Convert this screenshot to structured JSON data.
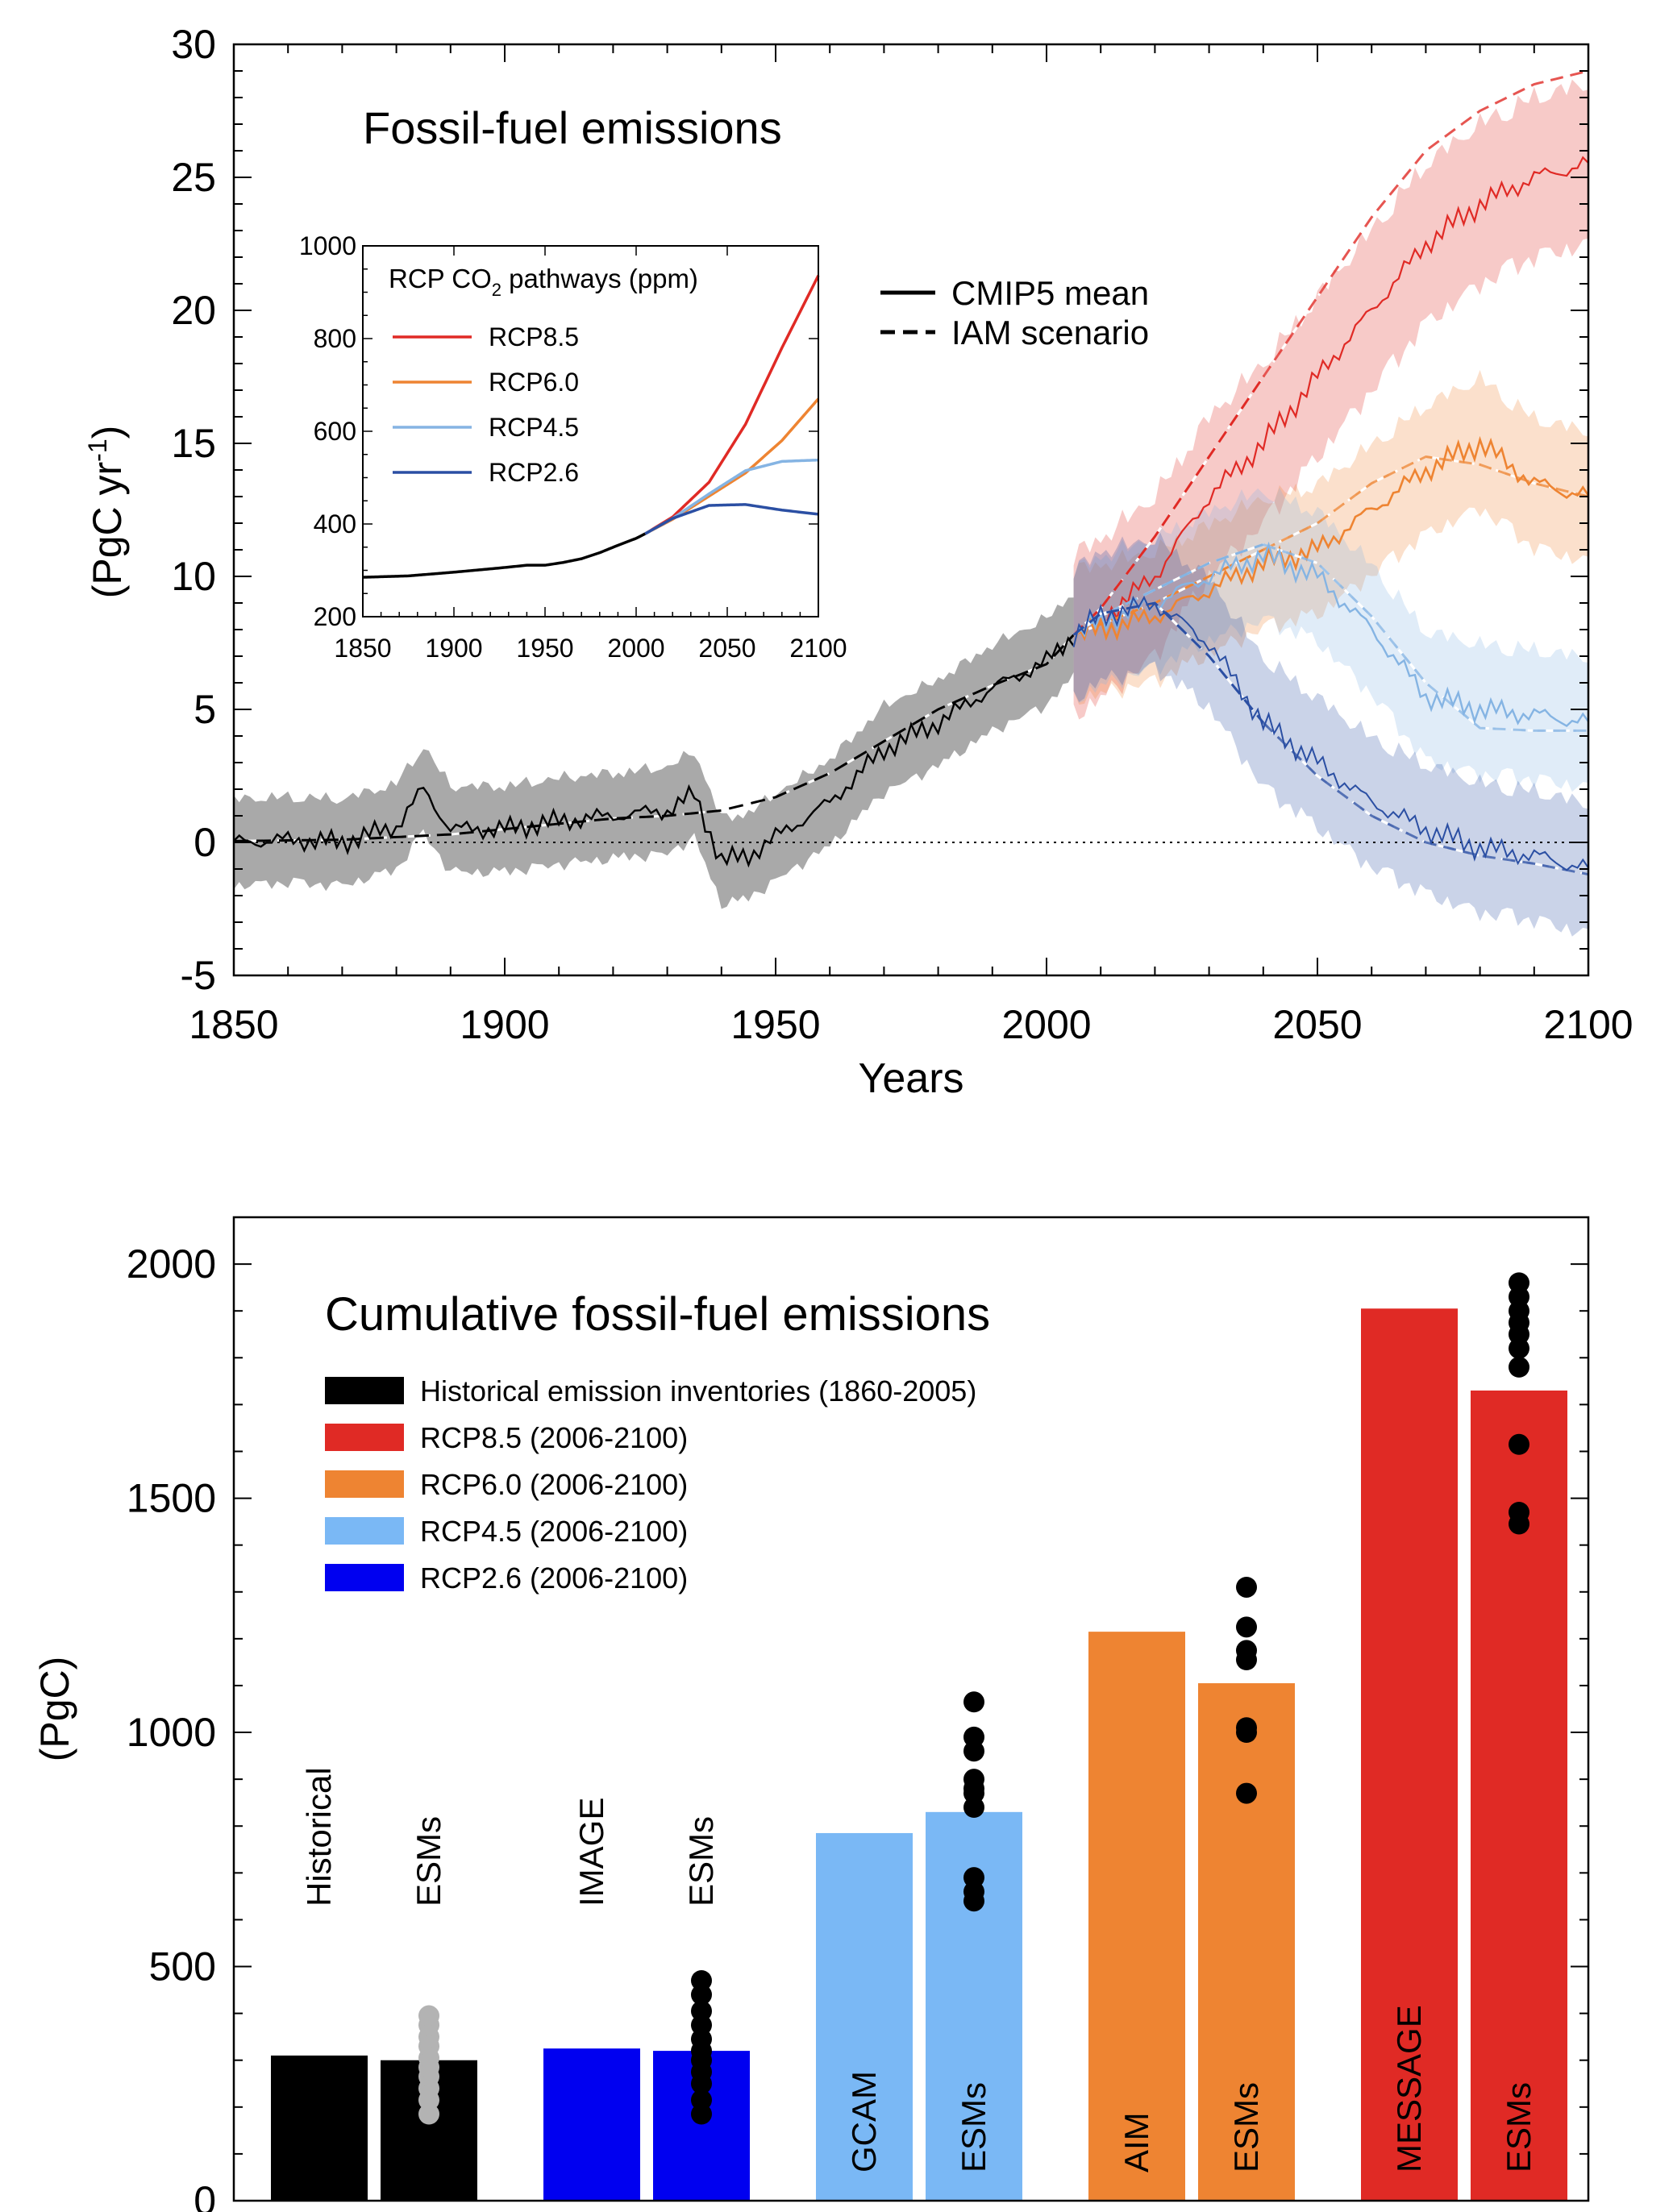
{
  "chart_data": [
    {
      "type": "line",
      "title": "Fossil-fuel emissions",
      "xlabel": "Years",
      "ylabel": "(PgC yr",
      "ylabel_sup": "-1",
      "ylabel_close": ")",
      "xlim": [
        1850,
        2100
      ],
      "ylim": [
        -5,
        30
      ],
      "xticks": [
        "1850",
        "1900",
        "1950",
        "2000",
        "2050",
        "2100"
      ],
      "yticks": [
        "-5",
        "0",
        "5",
        "10",
        "15",
        "20",
        "25",
        "30"
      ],
      "legend": [
        "CMIP5 mean",
        "IAM scenario"
      ],
      "colors": {
        "historical": "#000000",
        "hist_band": "#a9a9a9",
        "rcp85": "#e02a25",
        "rcp60": "#ee8432",
        "rcp45": "#85b4e3",
        "rcp26": "#2b4fa3"
      },
      "series": [
        {
          "name": "CMIP5 mean",
          "segment": "historical",
          "x": [
            1850,
            1860,
            1870,
            1880,
            1885,
            1890,
            1900,
            1910,
            1920,
            1930,
            1935,
            1940,
            1945,
            1950,
            1960,
            1970,
            1980,
            1990,
            2000,
            2005
          ],
          "values": [
            0.0,
            0.1,
            0.0,
            0.6,
            2.0,
            0.5,
            0.5,
            0.8,
            1.0,
            1.2,
            1.8,
            -0.7,
            -0.5,
            0.2,
            1.5,
            3.5,
            4.5,
            5.8,
            6.8,
            7.8
          ]
        },
        {
          "name": "IAM scenario",
          "segment": "historical",
          "x": [
            1850,
            1870,
            1890,
            1910,
            1920,
            1930,
            1940,
            1950,
            1960,
            1970,
            1980,
            1990,
            2000,
            2005
          ],
          "values": [
            0.05,
            0.1,
            0.3,
            0.7,
            0.9,
            1.0,
            1.2,
            1.7,
            2.6,
            3.8,
            5.0,
            5.9,
            6.7,
            7.8
          ]
        },
        {
          "name": "RCP8.5",
          "x": [
            2005,
            2010,
            2020,
            2030,
            2040,
            2050,
            2060,
            2070,
            2080,
            2090,
            2100
          ],
          "values": [
            7.8,
            8.4,
            10.0,
            13.0,
            15.0,
            17.5,
            20.0,
            22.5,
            24.0,
            25.0,
            25.5
          ],
          "iam": [
            7.8,
            8.8,
            11.5,
            14.5,
            17.5,
            20.5,
            23.5,
            26.0,
            27.5,
            28.5,
            29.0
          ]
        },
        {
          "name": "RCP6.0",
          "x": [
            2005,
            2010,
            2020,
            2030,
            2040,
            2050,
            2060,
            2070,
            2080,
            2090,
            2100
          ],
          "values": [
            7.8,
            8.0,
            8.5,
            9.5,
            10.5,
            11.0,
            12.5,
            14.0,
            15.0,
            13.5,
            13.0
          ],
          "iam": [
            7.8,
            8.2,
            9.0,
            10.0,
            11.0,
            12.0,
            13.5,
            14.5,
            14.2,
            13.5,
            13.0
          ]
        },
        {
          "name": "RCP4.5",
          "x": [
            2005,
            2010,
            2020,
            2030,
            2040,
            2050,
            2060,
            2070,
            2080,
            2090,
            2100
          ],
          "values": [
            7.8,
            8.3,
            9.0,
            10.0,
            10.8,
            10.0,
            8.0,
            5.5,
            5.0,
            4.8,
            4.5
          ],
          "iam": [
            7.8,
            8.5,
            9.5,
            10.5,
            11.2,
            10.5,
            8.5,
            6.0,
            4.3,
            4.2,
            4.2
          ]
        },
        {
          "name": "RCP2.6",
          "x": [
            2005,
            2010,
            2020,
            2030,
            2040,
            2050,
            2060,
            2070,
            2080,
            2090,
            2100
          ],
          "values": [
            7.8,
            8.5,
            9.0,
            7.5,
            4.5,
            3.0,
            1.5,
            0.5,
            -0.2,
            -0.5,
            -1.0
          ],
          "iam": [
            7.8,
            8.6,
            9.0,
            7.0,
            4.5,
            2.5,
            1.0,
            0.0,
            -0.5,
            -0.8,
            -1.2
          ]
        }
      ],
      "inset": {
        "title": "RCP CO",
        "title_sub": "2",
        "title_rest": " pathways (ppm)",
        "xlim": [
          1850,
          2100
        ],
        "ylim": [
          200,
          1000
        ],
        "xticks": [
          "1850",
          "1900",
          "1950",
          "2000",
          "2050",
          "2100"
        ],
        "yticks": [
          "200",
          "400",
          "600",
          "800",
          "1000"
        ],
        "legend": [
          "RCP8.5",
          "RCP6.0",
          "RCP4.5",
          "RCP2.6"
        ],
        "series": [
          {
            "segment": "historical",
            "x": [
              1850,
              1875,
              1900,
              1925,
              1940,
              1950,
              1960,
              1970,
              1980,
              1990,
              2000,
              2005
            ],
            "values": [
              285,
              288,
              296,
              305,
              311,
              311,
              317,
              325,
              338,
              354,
              369,
              379
            ]
          },
          {
            "name": "RCP8.5",
            "x": [
              2005,
              2020,
              2040,
              2060,
              2080,
              2100
            ],
            "values": [
              379,
              415,
              490,
              615,
              780,
              936
            ]
          },
          {
            "name": "RCP6.0",
            "x": [
              2005,
              2020,
              2040,
              2060,
              2080,
              2100
            ],
            "values": [
              379,
              410,
              460,
              510,
              580,
              670
            ]
          },
          {
            "name": "RCP4.5",
            "x": [
              2005,
              2020,
              2040,
              2060,
              2080,
              2100
            ],
            "values": [
              379,
              412,
              465,
              515,
              535,
              538
            ]
          },
          {
            "name": "RCP2.6",
            "x": [
              2005,
              2020,
              2040,
              2060,
              2080,
              2100
            ],
            "values": [
              379,
              412,
              440,
              442,
              430,
              421
            ]
          }
        ]
      }
    },
    {
      "type": "bar",
      "title": "Cumulative fossil-fuel emissions",
      "ylabel": "(PgC)",
      "ylim": [
        0,
        2100
      ],
      "yticks": [
        "0",
        "500",
        "1000",
        "1500",
        "2000"
      ],
      "legend": [
        "Historical emission inventories (1860-2005)",
        "RCP8.5 (2006-2100)",
        "RCP6.0 (2006-2100)",
        "RCP4.5 (2006-2100)",
        "RCP2.6 (2006-2100)"
      ],
      "colors": {
        "hist": "#000000",
        "rcp85": "#e02a25",
        "rcp60": "#ee8432",
        "rcp45": "#7ab8f5",
        "rcp26": "#0000f0"
      },
      "bars": [
        {
          "label": "Historical",
          "value": 310,
          "group": "hist"
        },
        {
          "label": "ESMs",
          "value": 300,
          "group": "hist",
          "points": [
            185,
            215,
            240,
            265,
            285,
            305,
            330,
            350,
            375,
            395
          ]
        },
        {
          "label": "IMAGE",
          "value": 325,
          "group": "rcp26"
        },
        {
          "label": "ESMs",
          "value": 320,
          "group": "rcp26",
          "points": [
            185,
            215,
            250,
            275,
            300,
            320,
            345,
            375,
            405,
            440,
            470
          ]
        },
        {
          "label": "GCAM",
          "value": 785,
          "group": "rcp45"
        },
        {
          "label": "ESMs",
          "value": 830,
          "group": "rcp45",
          "points": [
            640,
            660,
            690,
            840,
            870,
            880,
            900,
            960,
            990,
            1065
          ]
        },
        {
          "label": "AIM",
          "value": 1215,
          "group": "rcp60"
        },
        {
          "label": "ESMs",
          "value": 1105,
          "group": "rcp60",
          "points": [
            870,
            1000,
            1010,
            1155,
            1175,
            1225,
            1310
          ]
        },
        {
          "label": "MESSAGE",
          "value": 1905,
          "group": "rcp85"
        },
        {
          "label": "ESMs",
          "value": 1730,
          "group": "rcp85",
          "points": [
            1445,
            1470,
            1615,
            1780,
            1820,
            1850,
            1875,
            1900,
            1930,
            1960
          ]
        }
      ]
    }
  ]
}
